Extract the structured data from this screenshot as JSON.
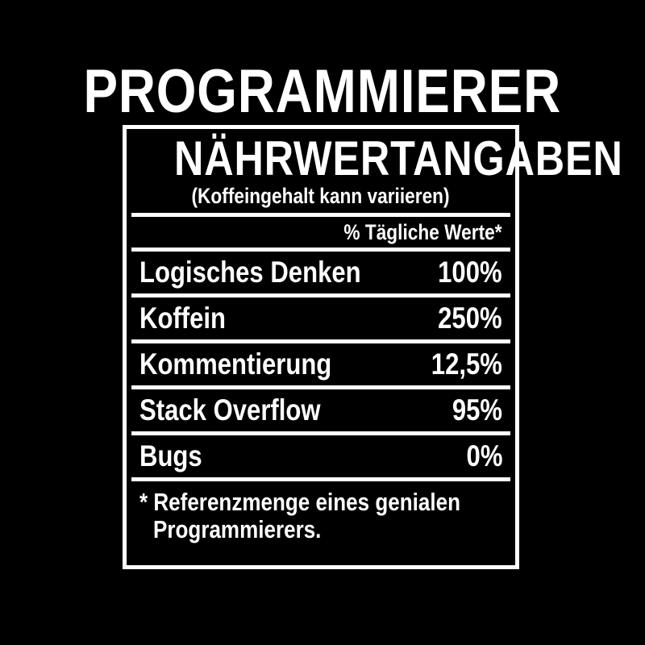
{
  "colors": {
    "background": "#000000",
    "text": "#ffffff",
    "border": "#ffffff"
  },
  "title": "PROGRAMMIERER",
  "label": {
    "heading": "NÄHRWERTANGABEN",
    "subheading": "(Koffeingehalt kann variieren)",
    "column_header": "% Tägliche Werte*",
    "rows": [
      {
        "name": "Logisches Denken",
        "value": "100%"
      },
      {
        "name": "Koffein",
        "value": "250%"
      },
      {
        "name": "Kommentierung",
        "value": "12,5%"
      },
      {
        "name": "Stack Overflow",
        "value": "95%"
      },
      {
        "name": "Bugs",
        "value": "0%"
      }
    ],
    "footnote": {
      "line1": "* Referenzmenge eines genialen",
      "line2": "Programmierers."
    }
  }
}
